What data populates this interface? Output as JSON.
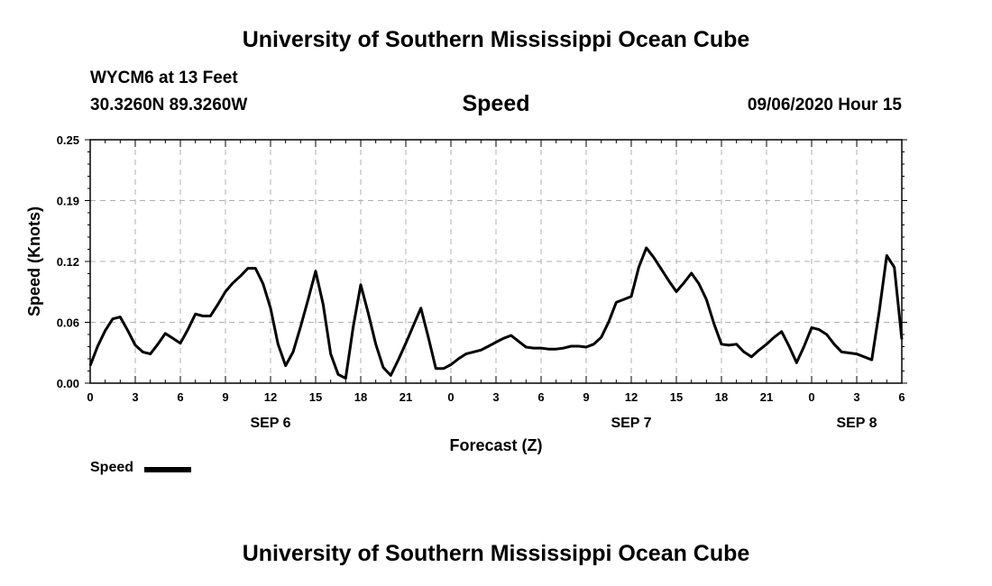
{
  "header": {
    "top_title": "University of Southern Mississippi Ocean Cube",
    "station": "WYCM6 at 13 Feet",
    "coords": "30.3260N 89.3260W",
    "plot_title": "Speed",
    "timestamp": "09/06/2020 Hour 15",
    "bottom_title": "University of Southern Mississippi Ocean Cube"
  },
  "legend": {
    "label": "Speed"
  },
  "colors": {
    "line": "#000000",
    "grid": "#b0b0b0",
    "axis": "#000000"
  },
  "chart_data": {
    "type": "line",
    "title": "Speed",
    "xlabel": "Forecast (Z)",
    "ylabel": "Speed (Knots)",
    "ylim": [
      0,
      0.25
    ],
    "xlim": [
      0,
      54
    ],
    "x_unit": "forecast hours",
    "y_ticks": [
      "0.00",
      "0.06",
      "0.12",
      "0.19",
      "0.25"
    ],
    "x_ticks": [
      "0",
      "3",
      "6",
      "9",
      "12",
      "15",
      "18",
      "21",
      "0",
      "3",
      "6",
      "9",
      "12",
      "15",
      "18",
      "21",
      "0",
      "3",
      "6"
    ],
    "date_labels": [
      {
        "label": "SEP 6",
        "hour": 12
      },
      {
        "label": "SEP 7",
        "hour": 36
      },
      {
        "label": "SEP 8",
        "hour": 51
      }
    ],
    "grid": true,
    "legend_position": "bottom-left",
    "series": [
      {
        "name": "Speed",
        "x": [
          0,
          0.5,
          1,
          1.5,
          2,
          2.5,
          3,
          3.5,
          4,
          4.5,
          5,
          5.5,
          6,
          6.5,
          7,
          7.5,
          8,
          8.5,
          9,
          9.5,
          10,
          10.5,
          11,
          11.5,
          12,
          12.5,
          13,
          13.5,
          14,
          14.5,
          15,
          15.5,
          16,
          16.5,
          17,
          17.5,
          18,
          18.5,
          19,
          19.5,
          20,
          20.5,
          21,
          21.5,
          22,
          22.5,
          23,
          23.5,
          24,
          24.5,
          25,
          25.5,
          26,
          26.5,
          27,
          27.5,
          28,
          28.5,
          29,
          29.5,
          30,
          30.5,
          31,
          31.5,
          32,
          32.5,
          33,
          33.5,
          34,
          34.5,
          35,
          35.5,
          36,
          36.5,
          37,
          37.5,
          38,
          38.5,
          39,
          39.5,
          40,
          40.5,
          41,
          41.5,
          42,
          42.5,
          43,
          43.5,
          44,
          44.5,
          45,
          45.5,
          46,
          46.5,
          47,
          47.5,
          48,
          48.5,
          49,
          49.5,
          50,
          50.5,
          51,
          51.5,
          52,
          52.5,
          53,
          53.5,
          54
        ],
        "values": [
          0.018,
          0.038,
          0.054,
          0.066,
          0.068,
          0.054,
          0.039,
          0.032,
          0.03,
          0.04,
          0.051,
          0.046,
          0.041,
          0.055,
          0.071,
          0.069,
          0.069,
          0.081,
          0.094,
          0.103,
          0.11,
          0.118,
          0.118,
          0.102,
          0.077,
          0.04,
          0.018,
          0.032,
          0.058,
          0.086,
          0.115,
          0.081,
          0.03,
          0.009,
          0.005,
          0.058,
          0.101,
          0.072,
          0.04,
          0.016,
          0.008,
          0.024,
          0.041,
          0.059,
          0.077,
          0.047,
          0.015,
          0.015,
          0.019,
          0.025,
          0.03,
          0.032,
          0.034,
          0.038,
          0.042,
          0.046,
          0.049,
          0.043,
          0.037,
          0.036,
          0.036,
          0.035,
          0.035,
          0.036,
          0.038,
          0.038,
          0.037,
          0.04,
          0.047,
          0.063,
          0.083,
          0.086,
          0.089,
          0.119,
          0.139,
          0.129,
          0.117,
          0.105,
          0.094,
          0.103,
          0.113,
          0.102,
          0.086,
          0.061,
          0.04,
          0.039,
          0.04,
          0.032,
          0.027,
          0.034,
          0.04,
          0.047,
          0.053,
          0.038,
          0.021,
          0.038,
          0.057,
          0.055,
          0.05,
          0.04,
          0.032,
          0.031,
          0.03,
          0.027,
          0.024,
          0.074,
          0.131,
          0.119,
          0.045
        ]
      }
    ]
  }
}
